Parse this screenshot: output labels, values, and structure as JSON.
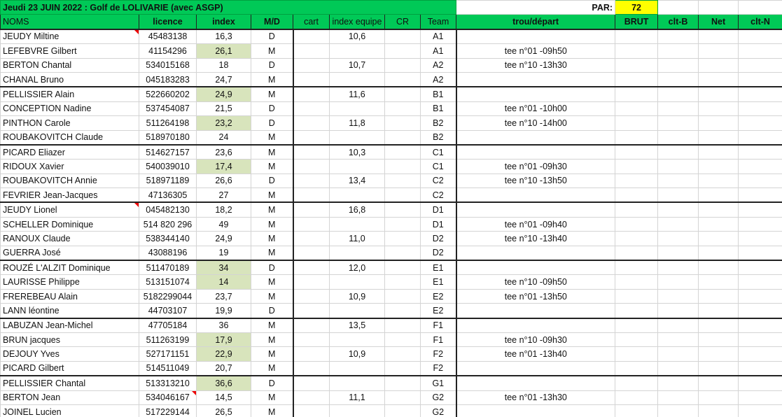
{
  "title": "Jeudi 23 JUIN 2022 : Golf de LOLIVARIE (avec ASGP)",
  "par_label": "PAR:",
  "par_value": "72",
  "headers": [
    "NOMS",
    "licence",
    "index",
    "M/D",
    "cart",
    "index equipe",
    "CR",
    "Team",
    "trou/départ",
    "BRUT",
    "clt-B",
    "Net",
    "clt-N"
  ],
  "colors": {
    "header_green": "#00c957",
    "index_highlight": "#d8e4bc",
    "par_yellow": "#ffff00"
  },
  "rows": [
    {
      "nom": "JEUDY Miltine",
      "licence": "45483138",
      "index": "16,3",
      "md": "D",
      "ie": "10,6",
      "team": "A1",
      "depart": "",
      "hl": false
    },
    {
      "nom": "LEFEBVRE Gilbert",
      "licence": "41154296",
      "index": "26,1",
      "md": "M",
      "ie": "",
      "team": "A1",
      "depart": "tee n°01 -09h50",
      "hl": true
    },
    {
      "nom": "BERTON Chantal",
      "licence": "534015168",
      "index": "18",
      "md": "D",
      "ie": "10,7",
      "team": "A2",
      "depart": "tee n°10 -13h30",
      "hl": false
    },
    {
      "nom": "CHANAL Bruno",
      "licence": "045183283",
      "index": "24,7",
      "md": "M",
      "ie": "",
      "team": "A2",
      "depart": "",
      "hl": false
    },
    {
      "nom": "PELLISSIER Alain",
      "licence": "522660202",
      "index": "24,9",
      "md": "M",
      "ie": "11,6",
      "team": "B1",
      "depart": "",
      "hl": true
    },
    {
      "nom": "CONCEPTION Nadine",
      "licence": "537454087",
      "index": "21,5",
      "md": "D",
      "ie": "",
      "team": "B1",
      "depart": "tee n°01 -10h00",
      "hl": false
    },
    {
      "nom": "PINTHON Carole",
      "licence": "511264198",
      "index": "23,2",
      "md": "D",
      "ie": "11,8",
      "team": "B2",
      "depart": "tee n°10 -14h00",
      "hl": true
    },
    {
      "nom": "ROUBAKOVITCH Claude",
      "licence": "518970180",
      "index": "24",
      "md": "M",
      "ie": "",
      "team": "B2",
      "depart": "",
      "hl": false
    },
    {
      "nom": "PICARD Eliazer",
      "licence": "514627157",
      "index": "23,6",
      "md": "M",
      "ie": "10,3",
      "team": "C1",
      "depart": "",
      "hl": false
    },
    {
      "nom": "RIDOUX Xavier",
      "licence": "540039010",
      "index": "17,4",
      "md": "M",
      "ie": "",
      "team": "C1",
      "depart": "tee n°01 -09h30",
      "hl": true
    },
    {
      "nom": "ROUBAKOVITCH Annie",
      "licence": "518971189",
      "index": "26,6",
      "md": "D",
      "ie": "13,4",
      "team": "C2",
      "depart": "tee n°10 -13h50",
      "hl": false
    },
    {
      "nom": "FEVRIER Jean-Jacques",
      "licence": "47136305",
      "index": "27",
      "md": "M",
      "ie": "",
      "team": "C2",
      "depart": "",
      "hl": false
    },
    {
      "nom": "JEUDY Lionel",
      "licence": "045482130",
      "index": "18,2",
      "md": "M",
      "ie": "16,8",
      "team": "D1",
      "depart": "",
      "hl": false
    },
    {
      "nom": "SCHELLER  Dominique",
      "licence": "514 820 296",
      "index": "49",
      "md": "M",
      "ie": "",
      "team": "D1",
      "depart": "tee n°01 -09h40",
      "hl": false
    },
    {
      "nom": "RANOUX Claude",
      "licence": "538344140",
      "index": "24,9",
      "md": "M",
      "ie": "11,0",
      "team": "D2",
      "depart": "tee n°10 -13h40",
      "hl": false
    },
    {
      "nom": "GUERRA José",
      "licence": "43088196",
      "index": "19",
      "md": "M",
      "ie": "",
      "team": "D2",
      "depart": "",
      "hl": false
    },
    {
      "nom": "ROUZÉ L'ALZIT Dominique",
      "licence": "511470189",
      "index": "34",
      "md": "D",
      "ie": "12,0",
      "team": "E1",
      "depart": "",
      "hl": true
    },
    {
      "nom": "LAURISSE Philippe",
      "licence": "513151074",
      "index": "14",
      "md": "M",
      "ie": "",
      "team": "E1",
      "depart": "tee n°10 -09h50",
      "hl": true
    },
    {
      "nom": "FREREBEAU Alain",
      "licence": "5182299044",
      "index": "23,7",
      "md": "M",
      "ie": "10,9",
      "team": "E2",
      "depart": "tee n°01 -13h50",
      "hl": false
    },
    {
      "nom": "LANN léontine",
      "licence": "44703107",
      "index": "19,9",
      "md": "D",
      "ie": "",
      "team": "E2",
      "depart": "",
      "hl": false
    },
    {
      "nom": "LABUZAN Jean-Michel",
      "licence": "47705184",
      "index": "36",
      "md": "M",
      "ie": "13,5",
      "team": "F1",
      "depart": "",
      "hl": false
    },
    {
      "nom": "BRUN jacques",
      "licence": "511263199",
      "index": "17,9",
      "md": "M",
      "ie": "",
      "team": "F1",
      "depart": "tee n°10 -09h30",
      "hl": true
    },
    {
      "nom": "DEJOUY Yves",
      "licence": "527171151",
      "index": "22,9",
      "md": "M",
      "ie": "10,9",
      "team": "F2",
      "depart": "tee n°01 -13h40",
      "hl": true
    },
    {
      "nom": "PICARD Gilbert",
      "licence": "514511049",
      "index": "20,7",
      "md": "M",
      "ie": "",
      "team": "F2",
      "depart": "",
      "hl": false
    },
    {
      "nom": "PELLISSIER Chantal",
      "licence": "513313210",
      "index": "36,6",
      "md": "D",
      "ie": "",
      "team": "G1",
      "depart": "",
      "hl": true
    },
    {
      "nom": "BERTON Jean",
      "licence": "534046167",
      "index": "14,5",
      "md": "M",
      "ie": "11,1",
      "team": "G2",
      "depart": "tee n°01 -13h30",
      "hl": false
    },
    {
      "nom": "JOINEL Lucien",
      "licence": "517229144",
      "index": "26,5",
      "md": "M",
      "ie": "",
      "team": "G2",
      "depart": "",
      "hl": false
    }
  ]
}
